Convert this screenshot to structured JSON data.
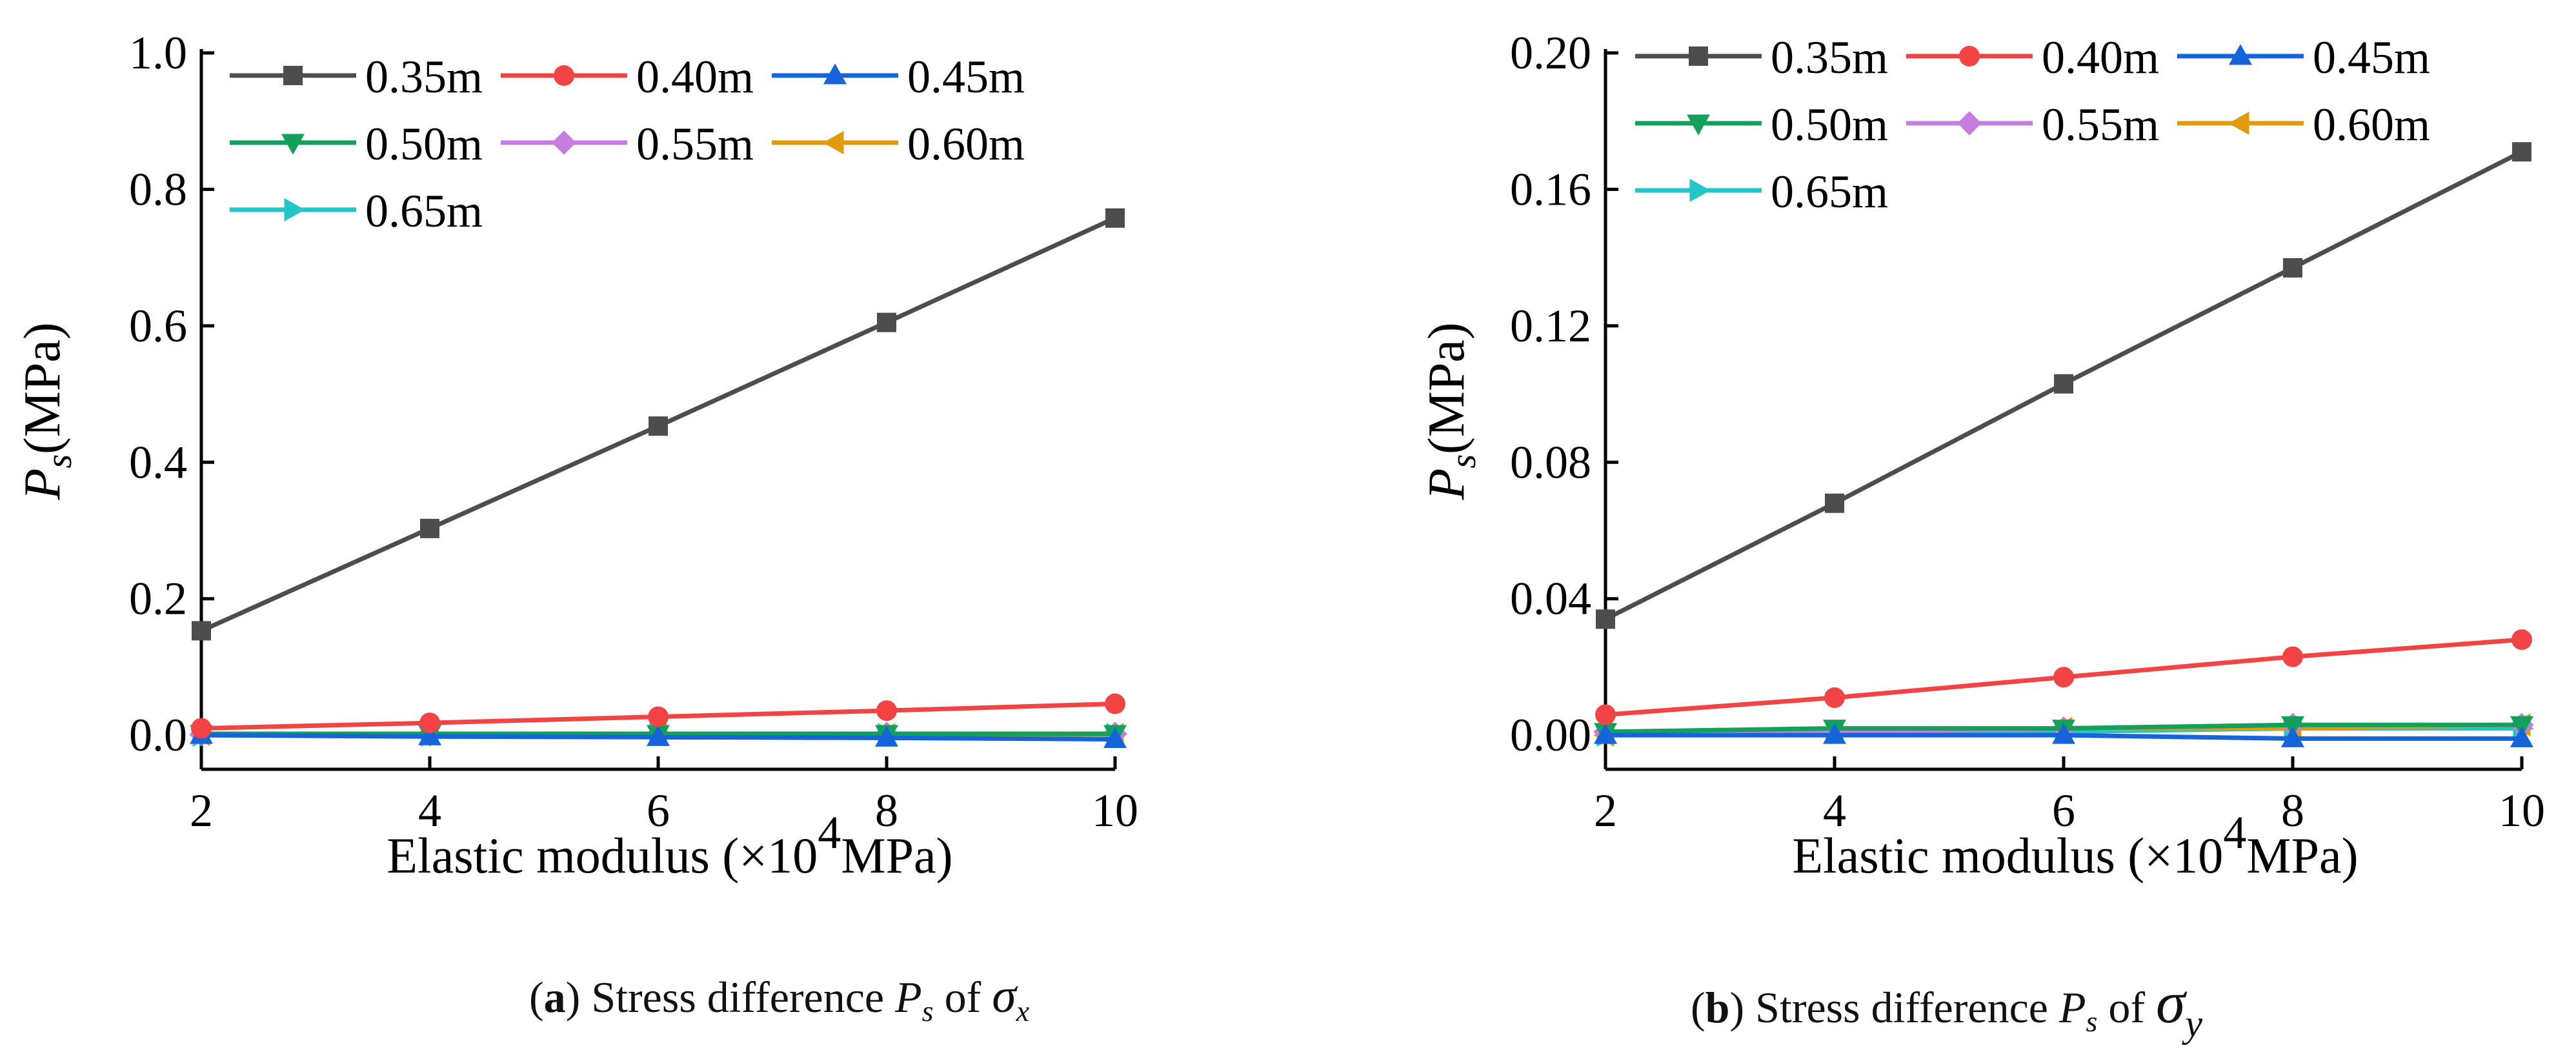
{
  "chart_data": [
    {
      "type": "line",
      "panel_id": "a",
      "ylabel": {
        "symbol": "P",
        "subscript": "s",
        "unit": "(MPa)"
      },
      "xlabel": {
        "prefix": "Elastic modulus (×10",
        "superscript": "4",
        "suffix": "MPa)"
      },
      "xlim": [
        2,
        10
      ],
      "ylim": [
        -0.05,
        1.0
      ],
      "xticks": [
        2,
        4,
        6,
        8,
        10
      ],
      "xtick_labels": [
        "2",
        "4",
        "6",
        "8",
        "10"
      ],
      "yticks": [
        0.0,
        0.2,
        0.4,
        0.6,
        0.8,
        1.0
      ],
      "ytick_labels": [
        "0.0",
        "0.2",
        "0.4",
        "0.6",
        "0.8",
        "1.0"
      ],
      "x": [
        2,
        4,
        6,
        8,
        10
      ],
      "legend_position": "top-left",
      "series": [
        {
          "name": "0.35m",
          "color": "#4d4d4d",
          "marker": "square",
          "values": [
            0.153,
            0.303,
            0.453,
            0.605,
            0.758
          ]
        },
        {
          "name": "0.40m",
          "color": "#f24444",
          "marker": "circle",
          "values": [
            0.01,
            0.018,
            0.027,
            0.036,
            0.046
          ]
        },
        {
          "name": "0.45m",
          "color": "#1664d9",
          "marker": "triangle-up",
          "values": [
            0.0,
            -0.002,
            -0.003,
            -0.004,
            -0.006
          ]
        },
        {
          "name": "0.50m",
          "color": "#13a05a",
          "marker": "triangle-down",
          "values": [
            0.002,
            0.002,
            0.002,
            0.002,
            0.002
          ]
        },
        {
          "name": "0.55m",
          "color": "#c57ee0",
          "marker": "diamond",
          "values": [
            0.001,
            0.001,
            0.002,
            0.002,
            0.002
          ]
        },
        {
          "name": "0.60m",
          "color": "#e09a0a",
          "marker": "triangle-left",
          "values": [
            0.001,
            0.001,
            0.001,
            0.001,
            0.001
          ]
        },
        {
          "name": "0.65m",
          "color": "#22c6c8",
          "marker": "triangle-right",
          "values": [
            0.0,
            0.0,
            0.001,
            0.001,
            0.001
          ]
        }
      ]
    },
    {
      "type": "line",
      "panel_id": "b",
      "ylabel": {
        "symbol": "P",
        "subscript": "s",
        "unit": "(MPa)"
      },
      "xlabel": {
        "prefix": "Elastic modulus (×10",
        "superscript": "4",
        "suffix": "MPa)"
      },
      "xlim": [
        2,
        10
      ],
      "ylim": [
        -0.01,
        0.2
      ],
      "xticks": [
        2,
        4,
        6,
        8,
        10
      ],
      "xtick_labels": [
        "2",
        "4",
        "6",
        "8",
        "10"
      ],
      "yticks": [
        0.0,
        0.04,
        0.08,
        0.12,
        0.16,
        0.2
      ],
      "ytick_labels": [
        "0.00",
        "0.04",
        "0.08",
        "0.12",
        "0.16",
        "0.20"
      ],
      "x": [
        2,
        4,
        6,
        8,
        10
      ],
      "legend_position": "top-left",
      "series": [
        {
          "name": "0.35m",
          "color": "#4d4d4d",
          "marker": "square",
          "values": [
            0.034,
            0.068,
            0.103,
            0.137,
            0.171
          ]
        },
        {
          "name": "0.40m",
          "color": "#f24444",
          "marker": "circle",
          "values": [
            0.006,
            0.011,
            0.017,
            0.023,
            0.028
          ]
        },
        {
          "name": "0.45m",
          "color": "#1664d9",
          "marker": "triangle-up",
          "values": [
            0.0,
            0.0,
            0.0,
            -0.001,
            -0.001
          ]
        },
        {
          "name": "0.50m",
          "color": "#13a05a",
          "marker": "triangle-down",
          "values": [
            0.001,
            0.002,
            0.002,
            0.003,
            0.003
          ]
        },
        {
          "name": "0.55m",
          "color": "#c57ee0",
          "marker": "diamond",
          "values": [
            0.001,
            0.001,
            0.002,
            0.003,
            0.003
          ]
        },
        {
          "name": "0.60m",
          "color": "#e09a0a",
          "marker": "triangle-left",
          "values": [
            0.0,
            0.001,
            0.002,
            0.002,
            0.003
          ]
        },
        {
          "name": "0.65m",
          "color": "#22c6c8",
          "marker": "triangle-right",
          "values": [
            0.0,
            0.001,
            0.001,
            0.002,
            0.002
          ]
        }
      ]
    }
  ],
  "captions": {
    "a": {
      "label": "a",
      "text": "Stress difference ",
      "symbol": "P",
      "subscript": "s",
      "of": " of ",
      "sigma": "σ",
      "sigma_sub": "x"
    },
    "b": {
      "label": "b",
      "text": "Stress difference ",
      "symbol": "P",
      "subscript": "s",
      "of": " of ",
      "sigma": "σ",
      "sigma_sub": "y"
    }
  }
}
